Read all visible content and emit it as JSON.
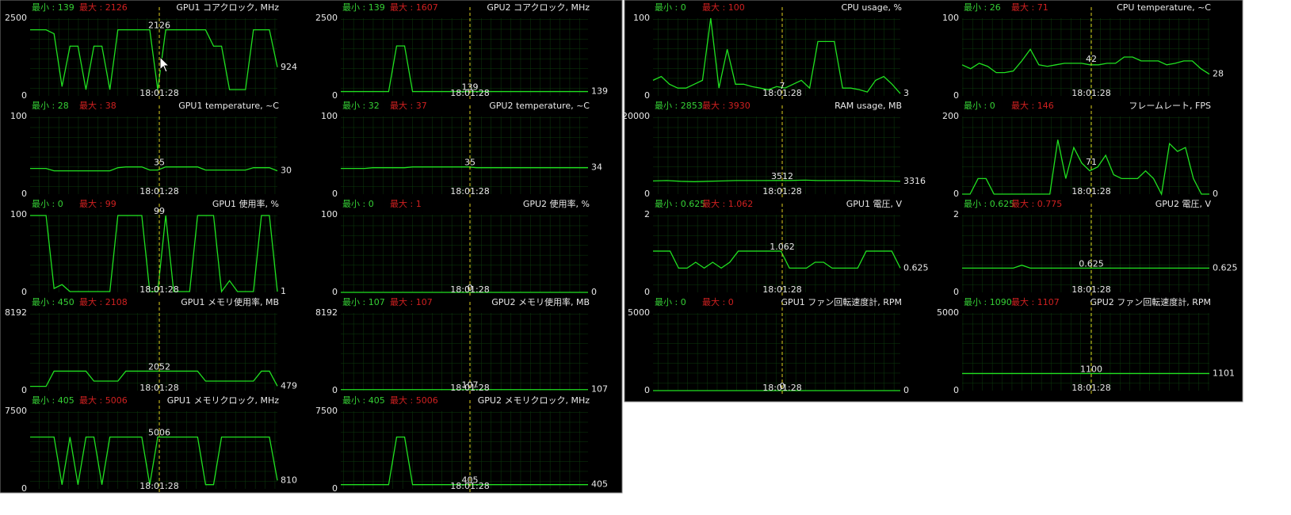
{
  "windows": [
    {
      "panels": [
        {
          "min_label": "最小 : 139",
          "max_label": "最大 : 2126",
          "title": "GPU1 コアクロック, MHz",
          "ylim": [
            0,
            2500
          ],
          "cursor_value": 2126,
          "current_value": 924,
          "time": "18:01:28",
          "line": [
            2126,
            2126,
            2126,
            2000,
            300,
            1600,
            1600,
            200,
            1600,
            1600,
            200,
            2126,
            2126,
            2126,
            2126,
            2126,
            200,
            2126,
            2126,
            2126,
            2126,
            2126,
            2126,
            1600,
            1600,
            200,
            200,
            200,
            2126,
            2126,
            2126,
            924
          ]
        },
        {
          "min_label": "最小 : 139",
          "max_label": "最大 : 1607",
          "title": "GPU2 コアクロック, MHz",
          "ylim": [
            0,
            2500
          ],
          "cursor_value": 139,
          "current_value": 139,
          "time": "18:01:28",
          "line": [
            139,
            139,
            139,
            139,
            139,
            139,
            139,
            1607,
            1607,
            139,
            139,
            139,
            139,
            139,
            139,
            139,
            139,
            139,
            139,
            139,
            139,
            139,
            139,
            139,
            139,
            139,
            139,
            139,
            139,
            139,
            139,
            139
          ]
        },
        {
          "min_label": "最小 : 28",
          "max_label": "最大 : 38",
          "title": "GPU1 temperature, ~C",
          "ylim": [
            0,
            100
          ],
          "cursor_value": 35,
          "current_value": 30,
          "time": "18:01:28",
          "line": [
            33,
            33,
            33,
            30,
            30,
            30,
            30,
            30,
            30,
            30,
            30,
            34,
            35,
            35,
            35,
            31,
            31,
            35,
            35,
            35,
            35,
            35,
            31,
            31,
            31,
            31,
            31,
            31,
            34,
            34,
            34,
            30
          ]
        },
        {
          "min_label": "最小 : 32",
          "max_label": "最大 : 37",
          "title": "GPU2 temperature, ~C",
          "ylim": [
            0,
            100
          ],
          "cursor_value": 35,
          "current_value": 34,
          "time": "18:01:28",
          "line": [
            33,
            33,
            33,
            33,
            34,
            34,
            34,
            34,
            34,
            35,
            35,
            35,
            35,
            35,
            35,
            35,
            35,
            34,
            34,
            34,
            34,
            34,
            34,
            34,
            34,
            34,
            34,
            34,
            34,
            34,
            34,
            34
          ]
        },
        {
          "min_label": "最小 : 0",
          "max_label": "最大 : 99",
          "title": "GPU1 使用率, %",
          "ylim": [
            0,
            100
          ],
          "cursor_value": 99,
          "current_value": 1,
          "time": "18:01:28",
          "line": [
            99,
            99,
            99,
            5,
            10,
            1,
            1,
            1,
            1,
            1,
            1,
            99,
            99,
            99,
            99,
            1,
            1,
            99,
            1,
            1,
            1,
            99,
            99,
            99,
            1,
            15,
            1,
            1,
            1,
            99,
            99,
            1
          ]
        },
        {
          "min_label": "最小 : 0",
          "max_label": "最大 : 1",
          "title": "GPU2 使用率, %",
          "ylim": [
            0,
            100
          ],
          "cursor_value": 0,
          "current_value": 0,
          "time": "18:01:28",
          "line": [
            0,
            0,
            0,
            0,
            0,
            0,
            0,
            0,
            0,
            0,
            0,
            0,
            0,
            0,
            0,
            0,
            0,
            0,
            0,
            0,
            0,
            0,
            0,
            0,
            0,
            0,
            0,
            0,
            0,
            0,
            0,
            0
          ]
        },
        {
          "min_label": "最小 : 450",
          "max_label": "最大 : 2108",
          "title": "GPU1 メモリ使用率, MB",
          "ylim": [
            0,
            8192
          ],
          "cursor_value": 2052,
          "current_value": 479,
          "time": "18:01:28",
          "line": [
            450,
            450,
            450,
            2052,
            2052,
            2052,
            2052,
            2052,
            1000,
            1000,
            1000,
            1000,
            2052,
            2052,
            2052,
            2052,
            2052,
            2052,
            2052,
            2052,
            2052,
            2052,
            1000,
            1000,
            1000,
            1000,
            1000,
            1000,
            1000,
            2052,
            2052,
            479
          ]
        },
        {
          "min_label": "最小 : 107",
          "max_label": "最大 : 107",
          "title": "GPU2 メモリ使用率, MB",
          "ylim": [
            0,
            8192
          ],
          "cursor_value": 107,
          "current_value": 107,
          "time": "18:01:28",
          "line": [
            107,
            107,
            107,
            107,
            107,
            107,
            107,
            107,
            107,
            107,
            107,
            107,
            107,
            107,
            107,
            107,
            107,
            107,
            107,
            107,
            107,
            107,
            107,
            107,
            107,
            107,
            107,
            107,
            107,
            107,
            107,
            107
          ]
        },
        {
          "min_label": "最小 : 405",
          "max_label": "最大 : 5006",
          "title": "GPU1 メモリクロック, MHz",
          "ylim": [
            0,
            7500
          ],
          "cursor_value": 5006,
          "current_value": 810,
          "time": "18:01:28",
          "line": [
            5006,
            5006,
            5006,
            5006,
            405,
            5006,
            405,
            5006,
            5006,
            405,
            5006,
            5006,
            5006,
            5006,
            5006,
            405,
            5006,
            5006,
            5006,
            5006,
            5006,
            5006,
            405,
            405,
            5006,
            5006,
            5006,
            5006,
            5006,
            5006,
            5006,
            810
          ]
        },
        {
          "min_label": "最小 : 405",
          "max_label": "最大 : 5006",
          "title": "GPU2 メモリクロック, MHz",
          "ylim": [
            0,
            7500
          ],
          "cursor_value": 405,
          "current_value": 405,
          "time": "18:01:28",
          "line": [
            405,
            405,
            405,
            405,
            405,
            405,
            405,
            5006,
            5006,
            405,
            405,
            405,
            405,
            405,
            405,
            405,
            405,
            405,
            405,
            405,
            405,
            405,
            405,
            405,
            405,
            405,
            405,
            405,
            405,
            405,
            405,
            405
          ]
        }
      ]
    },
    {
      "panels": [
        {
          "min_label": "最小 : 0",
          "max_label": "最大 : 100",
          "title": "CPU usage, %",
          "ylim": [
            0,
            100
          ],
          "cursor_value": 7,
          "current_value": 3,
          "time": "18:01:28",
          "line": [
            20,
            25,
            15,
            10,
            10,
            15,
            20,
            100,
            10,
            60,
            15,
            15,
            12,
            10,
            8,
            12,
            10,
            15,
            20,
            10,
            70,
            70,
            70,
            10,
            10,
            8,
            5,
            20,
            25,
            15,
            3
          ]
        },
        {
          "min_label": "最小 : 26",
          "max_label": "最大 : 71",
          "title": "CPU temperature, ~C",
          "ylim": [
            0,
            100
          ],
          "cursor_value": 42,
          "current_value": 28,
          "time": "18:01:28",
          "line": [
            40,
            35,
            42,
            38,
            30,
            30,
            32,
            45,
            60,
            40,
            38,
            40,
            42,
            42,
            42,
            40,
            40,
            42,
            42,
            50,
            50,
            45,
            45,
            45,
            40,
            42,
            45,
            45,
            35,
            28
          ]
        },
        {
          "min_label": "最小 : 2853",
          "max_label": "最大 : 3930",
          "title": "RAM usage, MB",
          "ylim": [
            0,
            20000
          ],
          "cursor_value": 3512,
          "current_value": 3316,
          "time": "18:01:28",
          "line": [
            3400,
            3500,
            3300,
            3200,
            3300,
            3400,
            3500,
            3500,
            3500,
            3512,
            3512,
            3600,
            3500,
            3500,
            3500,
            3500,
            3400,
            3400,
            3316
          ]
        },
        {
          "min_label": "最小 : 0",
          "max_label": "最大 : 146",
          "title": "フレームレート, FPS",
          "ylim": [
            0,
            200
          ],
          "cursor_value": 71,
          "current_value": 0,
          "time": "18:01:28",
          "line": [
            0,
            0,
            40,
            40,
            0,
            0,
            0,
            0,
            0,
            0,
            0,
            0,
            140,
            40,
            120,
            80,
            60,
            70,
            100,
            50,
            40,
            40,
            40,
            60,
            40,
            0,
            130,
            110,
            120,
            40,
            0,
            0
          ]
        },
        {
          "min_label": "最小 : 0.625",
          "max_label": "最大 : 1.062",
          "title": "GPU1 電圧, V",
          "ylim": [
            0,
            2
          ],
          "cursor_value": 1.062,
          "current_value": 0.625,
          "time": "18:01:28",
          "line": [
            1.062,
            1.062,
            1.062,
            0.625,
            0.625,
            0.775,
            0.625,
            0.775,
            0.625,
            0.775,
            1.062,
            1.062,
            1.062,
            1.062,
            1.062,
            1.062,
            0.625,
            0.625,
            0.625,
            0.775,
            0.775,
            0.625,
            0.625,
            0.625,
            0.625,
            1.062,
            1.062,
            1.062,
            1.062,
            0.625
          ]
        },
        {
          "min_label": "最小 : 0.625",
          "max_label": "最大 : 0.775",
          "title": "GPU2 電圧, V",
          "ylim": [
            0,
            2
          ],
          "cursor_value": 0.625,
          "current_value": 0.625,
          "time": "18:01:28",
          "line": [
            0.625,
            0.625,
            0.625,
            0.625,
            0.625,
            0.625,
            0.625,
            0.7,
            0.625,
            0.625,
            0.625,
            0.625,
            0.625,
            0.625,
            0.625,
            0.625,
            0.625,
            0.625,
            0.625,
            0.625,
            0.625,
            0.625,
            0.625,
            0.625,
            0.625,
            0.625,
            0.625,
            0.625,
            0.625,
            0.625
          ]
        },
        {
          "min_label": "最小 : 0",
          "max_label": "最大 : 0",
          "title": "GPU1 ファン回転速度計, RPM",
          "ylim": [
            0,
            5000
          ],
          "cursor_value": 0,
          "current_value": 0,
          "time": "18:01:28",
          "line": [
            0,
            0,
            0,
            0,
            0,
            0,
            0,
            0,
            0,
            0,
            0,
            0,
            0,
            0,
            0,
            0,
            0,
            0,
            0,
            0
          ]
        },
        {
          "min_label": "最小 : 1090",
          "max_label": "最大 : 1107",
          "title": "GPU2 ファン回転速度計, RPM",
          "ylim": [
            0,
            5000
          ],
          "cursor_value": 1100,
          "current_value": 1101,
          "time": "18:01:28",
          "line": [
            1100,
            1100,
            1100,
            1100,
            1100,
            1100,
            1100,
            1100,
            1100,
            1100,
            1100,
            1100,
            1100,
            1100,
            1100,
            1100,
            1100,
            1100,
            1100,
            1101
          ]
        }
      ]
    }
  ]
}
